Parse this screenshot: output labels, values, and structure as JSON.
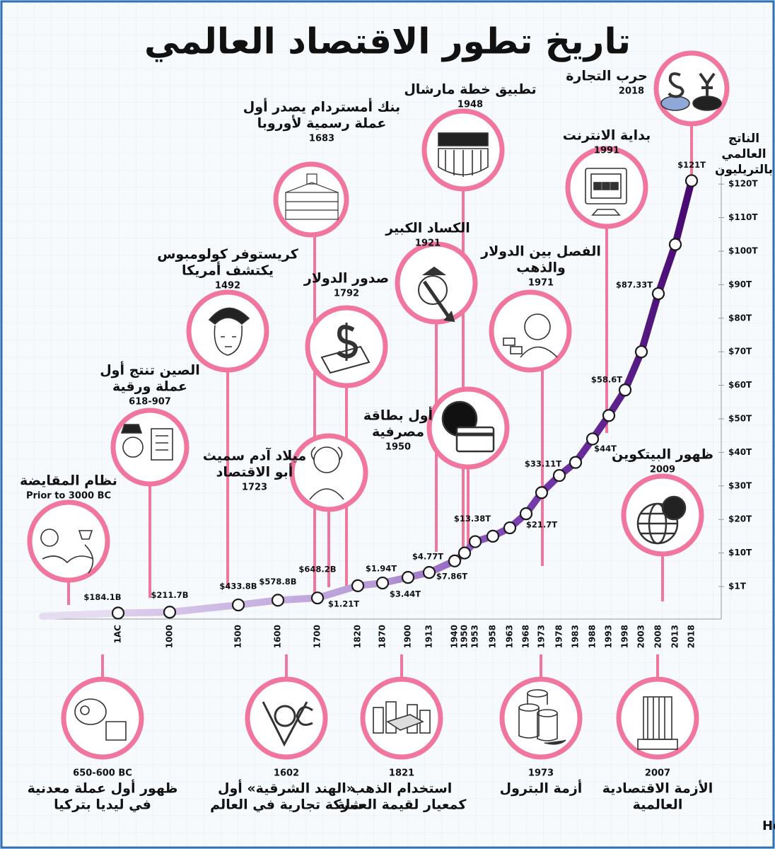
{
  "chart_data": {
    "type": "line",
    "title": "تاريخ تطور الاقتصاد العالمي",
    "y_axis_title": [
      "الناتج",
      "العالمي",
      "بالتريليون"
    ],
    "categories": [
      "1AC",
      "1000",
      "1500",
      "1600",
      "1700",
      "1820",
      "1870",
      "1900",
      "1913",
      "1940",
      "1950",
      "1953",
      "1958",
      "1963",
      "1968",
      "1973",
      "1978",
      "1983",
      "1988",
      "1993",
      "1998",
      "2003",
      "2008",
      "2013",
      "2018"
    ],
    "values": [
      0.1841,
      0.2117,
      0.4338,
      0.5788,
      0.6482,
      1.21,
      1.94,
      3.44,
      4.77,
      7.86,
      10,
      13.38,
      15,
      17.5,
      21.7,
      28,
      33.11,
      37,
      44,
      51,
      58.6,
      70,
      87.33,
      102,
      121
    ],
    "value_labels": [
      "$184.1B",
      "$211.7B",
      "$433.8B",
      "$578.8B",
      "$648.2B",
      "$1.21T",
      "$1.94T",
      "$3.44T",
      "$4.77T",
      "$7.86T",
      null,
      "$13.38T",
      null,
      null,
      "$21.7T",
      null,
      "$33.11T",
      null,
      "$44T",
      null,
      "$58.6T",
      null,
      "$87.33T",
      null,
      "$121T"
    ],
    "ylim": [
      0,
      125
    ],
    "yticks": [
      {
        "value": 1,
        "label": "$1T"
      },
      {
        "value": 10,
        "label": "$10T"
      },
      {
        "value": 20,
        "label": "$20T"
      },
      {
        "value": 30,
        "label": "$30T"
      },
      {
        "value": 40,
        "label": "$40T"
      },
      {
        "value": 50,
        "label": "$50T"
      },
      {
        "value": 60,
        "label": "$60T"
      },
      {
        "value": 70,
        "label": "$70T"
      },
      {
        "value": 80,
        "label": "$80T"
      },
      {
        "value": 90,
        "label": "$90T"
      },
      {
        "value": 100,
        "label": "$100T"
      },
      {
        "value": 110,
        "label": "$110T"
      },
      {
        "value": 120,
        "label": "$120T"
      }
    ],
    "grid": false,
    "line_color": "#5b1a8f",
    "marker_color": "#ffffff",
    "ring_color": "#f0769e",
    "annotations": [
      {
        "lines": [
          "نظام المقايضة"
        ],
        "year": "Prior to 3000 BC"
      },
      {
        "lines": [
          "الصين تنتج أول",
          "عملة ورقية"
        ],
        "year": "618-907"
      },
      {
        "lines": [
          "كريستوفر كولومبوس",
          "يكتشف أمريكا"
        ],
        "year": "1492"
      },
      {
        "lines": [
          "بنك أمستردام يصدر أول",
          "عملة رسمية لأوروبا"
        ],
        "year": "1683"
      },
      {
        "lines": [
          "صدور الدولار"
        ],
        "year": "1792"
      },
      {
        "lines": [
          "ميلاد آدم سميث",
          "أبو الاقتصاد"
        ],
        "year": "1723"
      },
      {
        "lines": [
          "الكساد الكبير"
        ],
        "year": "1921"
      },
      {
        "lines": [
          "تطبيق خطة مارشال"
        ],
        "year": "1948"
      },
      {
        "lines": [
          "أول بطاقة",
          "مصرفية"
        ],
        "year": "1950"
      },
      {
        "lines": [
          "الفصل بين الدولار",
          "والذهب"
        ],
        "year": "1971"
      },
      {
        "lines": [
          "بداية الانترنت"
        ],
        "year": "1991"
      },
      {
        "lines": [
          "حرب التجارة"
        ],
        "year": "2018"
      },
      {
        "lines": [
          "ظهور البيتكوين"
        ],
        "year": "2009"
      },
      {
        "lines": [
          "ظهور أول عملة معدنية",
          "في ليديا بتركيا"
        ],
        "year": "650-600 BC"
      },
      {
        "lines": [
          "«الهند الشرقية» أول",
          "شركة تجارية في العالم"
        ],
        "year": "1602"
      },
      {
        "lines": [
          "استخدام الذهب",
          "كمعيار لقيمة العملة"
        ],
        "year": "1821"
      },
      {
        "lines": [
          "أزمة البترول"
        ],
        "year": "1973"
      },
      {
        "lines": [
          "الأزمة الاقتصادية",
          "العالمية"
        ],
        "year": "2007"
      }
    ],
    "source": "نقلا عن: Howmuch.net"
  }
}
